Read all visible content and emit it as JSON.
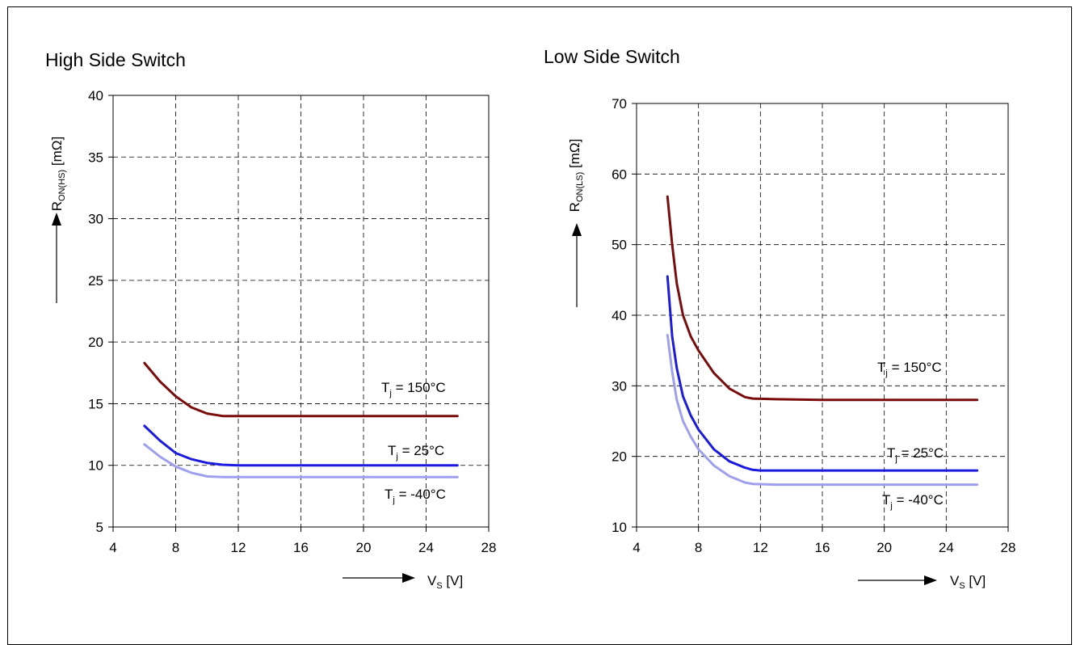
{
  "chart_data": [
    {
      "type": "line",
      "title": "High Side Switch",
      "ylabel": {
        "symbol": "R",
        "sub": "ON(HS)",
        "unit": "[mΩ]"
      },
      "xlabel": {
        "symbol": "V",
        "sub": "S",
        "unit": "[V]"
      },
      "xlim": [
        4,
        28
      ],
      "ylim": [
        5,
        40
      ],
      "xticks": [
        4,
        8,
        12,
        16,
        20,
        24,
        28
      ],
      "yticks": [
        5,
        10,
        15,
        20,
        25,
        30,
        35,
        40
      ],
      "grid": true,
      "series": [
        {
          "name": "Tj = 150°C",
          "label_parts": [
            "T",
            "j",
            " = 150°C"
          ],
          "color": "#7b0c0c",
          "points": [
            [
              6,
              18.3
            ],
            [
              7,
              16.8
            ],
            [
              8,
              15.6
            ],
            [
              9,
              14.7
            ],
            [
              10,
              14.2
            ],
            [
              11,
              14.0
            ],
            [
              12,
              14.0
            ],
            [
              16,
              14.0
            ],
            [
              20,
              14.0
            ],
            [
              24,
              14.0
            ],
            [
              26,
              14.0
            ]
          ]
        },
        {
          "name": "Tj = 25°C",
          "label_parts": [
            "T",
            "j",
            " = 25°C"
          ],
          "color": "#1a1ae0",
          "points": [
            [
              6,
              13.2
            ],
            [
              7,
              12.0
            ],
            [
              8,
              11.0
            ],
            [
              9,
              10.5
            ],
            [
              10,
              10.2
            ],
            [
              11,
              10.05
            ],
            [
              12,
              10.0
            ],
            [
              16,
              10.0
            ],
            [
              20,
              10.0
            ],
            [
              24,
              10.0
            ],
            [
              26,
              10.0
            ]
          ]
        },
        {
          "name": "Tj = -40°C",
          "label_parts": [
            "T",
            "j",
            " = -40°C"
          ],
          "color": "#9ea0ef",
          "points": [
            [
              6,
              11.7
            ],
            [
              7,
              10.7
            ],
            [
              8,
              9.9
            ],
            [
              9,
              9.4
            ],
            [
              10,
              9.1
            ],
            [
              11,
              9.05
            ],
            [
              12,
              9.05
            ],
            [
              16,
              9.05
            ],
            [
              20,
              9.05
            ],
            [
              24,
              9.05
            ],
            [
              26,
              9.05
            ]
          ]
        }
      ]
    },
    {
      "type": "line",
      "title": "Low Side Switch",
      "ylabel": {
        "symbol": "R",
        "sub": "ON(LS)",
        "unit": "[mΩ]"
      },
      "xlabel": {
        "symbol": "V",
        "sub": "S",
        "unit": "[V]"
      },
      "xlim": [
        4,
        28
      ],
      "ylim": [
        10,
        70
      ],
      "xticks": [
        4,
        8,
        12,
        16,
        20,
        24,
        28
      ],
      "yticks": [
        10,
        20,
        30,
        40,
        50,
        60,
        70
      ],
      "grid": true,
      "series": [
        {
          "name": "Tj = 150°C",
          "label_parts": [
            "T",
            "j",
            " = 150°C"
          ],
          "color": "#7b0c0c",
          "points": [
            [
              6,
              56.8
            ],
            [
              6.3,
              50.0
            ],
            [
              6.6,
              44.5
            ],
            [
              7,
              40.0
            ],
            [
              7.5,
              37.0
            ],
            [
              8,
              35.0
            ],
            [
              9,
              31.8
            ],
            [
              10,
              29.6
            ],
            [
              11,
              28.4
            ],
            [
              11.5,
              28.2
            ],
            [
              13,
              28.1
            ],
            [
              16,
              28.0
            ],
            [
              20,
              28.0
            ],
            [
              24,
              28.0
            ],
            [
              26,
              28.0
            ]
          ]
        },
        {
          "name": "Tj = 25°C",
          "label_parts": [
            "T",
            "j",
            " = 25°C"
          ],
          "color": "#1a1ae0",
          "points": [
            [
              6,
              45.5
            ],
            [
              6.3,
              37.0
            ],
            [
              6.6,
              32.5
            ],
            [
              7,
              28.5
            ],
            [
              7.5,
              25.8
            ],
            [
              8,
              23.8
            ],
            [
              9,
              21.0
            ],
            [
              10,
              19.3
            ],
            [
              11,
              18.4
            ],
            [
              11.5,
              18.1
            ],
            [
              12,
              18.0
            ],
            [
              16,
              18.0
            ],
            [
              20,
              18.0
            ],
            [
              24,
              18.0
            ],
            [
              26,
              18.0
            ]
          ]
        },
        {
          "name": "Tj = -40°C",
          "label_parts": [
            "T",
            "j",
            " = -40°C"
          ],
          "color": "#9ea0ef",
          "points": [
            [
              6,
              37.2
            ],
            [
              6.3,
              32.0
            ],
            [
              6.6,
              28.0
            ],
            [
              7,
              25.0
            ],
            [
              7.5,
              22.8
            ],
            [
              8,
              21.0
            ],
            [
              9,
              18.7
            ],
            [
              10,
              17.2
            ],
            [
              11,
              16.3
            ],
            [
              11.5,
              16.1
            ],
            [
              13,
              16.0
            ],
            [
              16,
              16.0
            ],
            [
              20,
              16.0
            ],
            [
              24,
              16.0
            ],
            [
              26,
              16.0
            ]
          ]
        }
      ]
    }
  ]
}
